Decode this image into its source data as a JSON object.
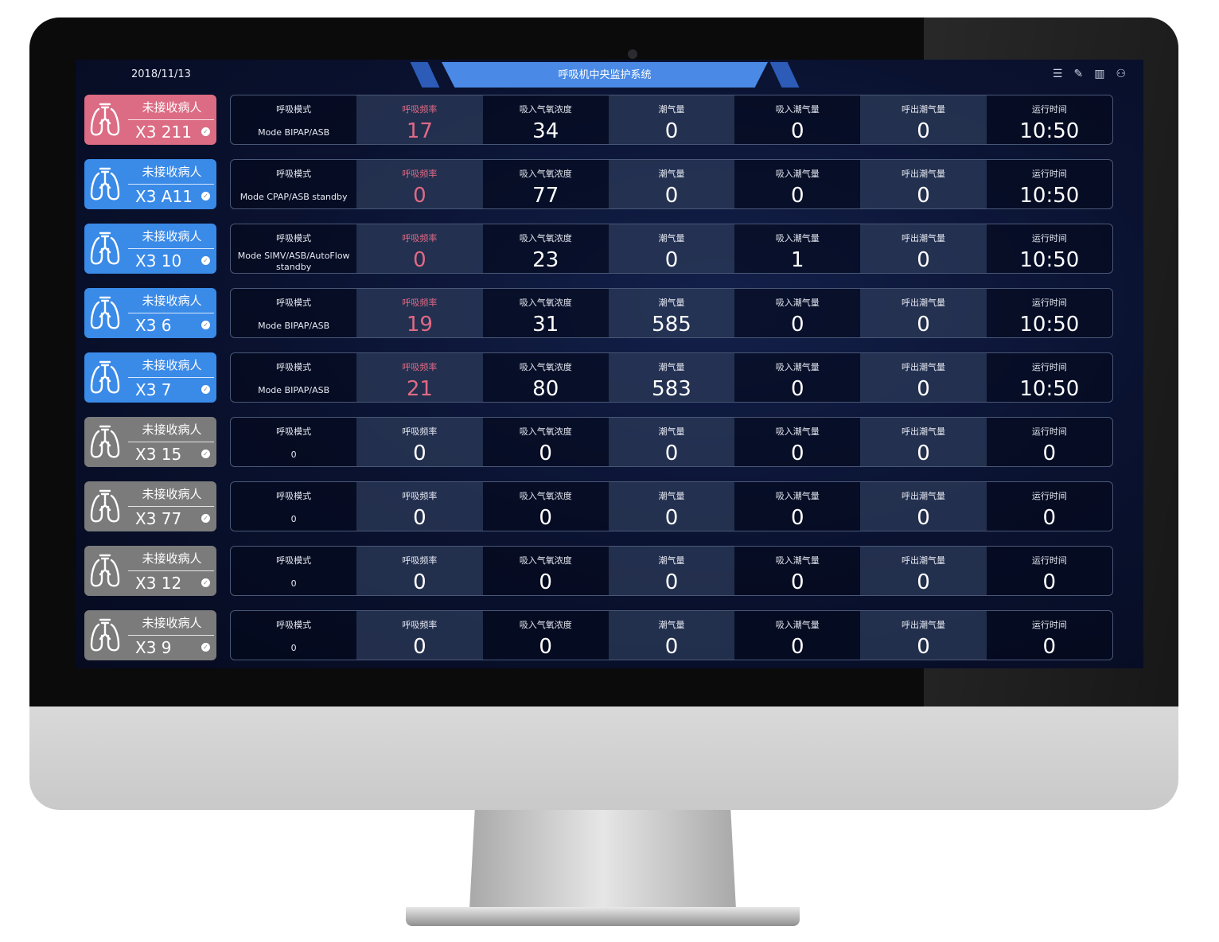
{
  "header": {
    "date": "2018/11/13",
    "title": "呼吸机中央监护系统",
    "icons": [
      "menu-list-icon",
      "edit-icon",
      "layout-icon",
      "user-icon"
    ]
  },
  "colors": {
    "pink": "#dc6b84",
    "blue": "#3a8ae8",
    "gray": "#7b7b7b"
  },
  "labels": [
    "呼吸模式",
    "呼吸频率",
    "吸入气氧浓度",
    "潮气量",
    "吸入潮气量",
    "呼出潮气量",
    "运行时间"
  ],
  "rows": [
    {
      "status": "未接收病人",
      "bed": "X3 211",
      "color": "pink",
      "mode": "Mode BIPAP/ASB",
      "values": [
        "17",
        "34",
        "0",
        "0",
        "0",
        "10:50"
      ],
      "alert": true
    },
    {
      "status": "未接收病人",
      "bed": "X3 A11",
      "color": "blue",
      "mode": "Mode CPAP/ASB standby",
      "values": [
        "0",
        "77",
        "0",
        "0",
        "0",
        "10:50"
      ],
      "alert": true
    },
    {
      "status": "未接收病人",
      "bed": "X3 10",
      "color": "blue",
      "mode": "Mode SIMV/ASB/AutoFlow standby",
      "values": [
        "0",
        "23",
        "0",
        "1",
        "0",
        "10:50"
      ],
      "alert": true
    },
    {
      "status": "未接收病人",
      "bed": "X3 6",
      "color": "blue",
      "mode": "Mode BIPAP/ASB",
      "values": [
        "19",
        "31",
        "585",
        "0",
        "0",
        "10:50"
      ],
      "alert": true
    },
    {
      "status": "未接收病人",
      "bed": "X3 7",
      "color": "blue",
      "mode": "Mode BIPAP/ASB",
      "values": [
        "21",
        "80",
        "583",
        "0",
        "0",
        "10:50"
      ],
      "alert": true
    },
    {
      "status": "未接收病人",
      "bed": "X3 15",
      "color": "gray",
      "mode": "0",
      "values": [
        "0",
        "0",
        "0",
        "0",
        "0",
        "0"
      ],
      "alert": false
    },
    {
      "status": "未接收病人",
      "bed": "X3 77",
      "color": "gray",
      "mode": "0",
      "values": [
        "0",
        "0",
        "0",
        "0",
        "0",
        "0"
      ],
      "alert": false
    },
    {
      "status": "未接收病人",
      "bed": "X3 12",
      "color": "gray",
      "mode": "0",
      "values": [
        "0",
        "0",
        "0",
        "0",
        "0",
        "0"
      ],
      "alert": false
    },
    {
      "status": "未接收病人",
      "bed": "X3 9",
      "color": "gray",
      "mode": "0",
      "values": [
        "0",
        "0",
        "0",
        "0",
        "0",
        "0"
      ],
      "alert": false
    }
  ]
}
